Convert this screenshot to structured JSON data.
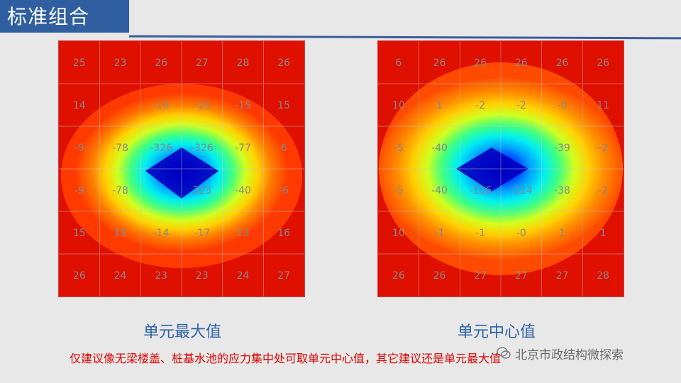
{
  "header": {
    "title": "标准组合"
  },
  "left_plot": {
    "caption": "单元最大值",
    "grid": [
      [
        "25",
        "23",
        "26",
        "27",
        "28",
        "26"
      ],
      [
        "14",
        "",
        "-16",
        "-15",
        "-15",
        "15"
      ],
      [
        "-9",
        "-78",
        "-326",
        "-326",
        "-77",
        "6"
      ],
      [
        "-9",
        "-78",
        "",
        "323",
        "-40",
        "-6"
      ],
      [
        "15",
        "15",
        "-14",
        "-17",
        "13",
        "16"
      ],
      [
        "26",
        "24",
        "23",
        "23",
        "24",
        "27"
      ]
    ]
  },
  "right_plot": {
    "caption": "单元中心值",
    "grid": [
      [
        "6",
        "26",
        "26",
        "26",
        "26",
        "26"
      ],
      [
        "10",
        "1",
        "-2",
        "-2",
        "-0",
        "11"
      ],
      [
        "-5",
        "-40",
        "",
        "",
        "-39",
        "-2"
      ],
      [
        "-5",
        "-40",
        "-116",
        "-114",
        "-38",
        "-2"
      ],
      [
        "10",
        "-1",
        "-1",
        "-0",
        "1",
        "1"
      ],
      [
        "26",
        "26",
        "27",
        "27",
        "27",
        "28"
      ]
    ]
  },
  "note": "仅建议像无梁楼盖、桩基水池的应力集中处可取单元中心值，其它建议还是单元最大值",
  "watermark": {
    "text": "北京市政结构微探索",
    "icon": "wechat-icon"
  },
  "colors": {
    "accent": "#2f5fa0",
    "note": "#e00000",
    "caption": "#2e62a8"
  }
}
